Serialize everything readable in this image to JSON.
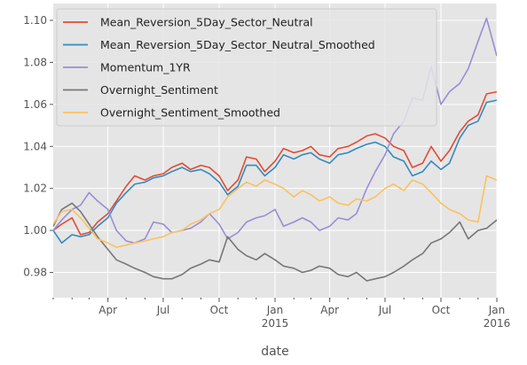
{
  "chart_data": {
    "type": "line",
    "xlabel": "date",
    "x_range": [
      "2014-01-01",
      "2016-01-01"
    ],
    "ylim": [
      0.968,
      1.108
    ],
    "y_ticks": [
      {
        "value": 0.98,
        "label": "0.98"
      },
      {
        "value": 1.0,
        "label": "1.00"
      },
      {
        "value": 1.02,
        "label": "1.02"
      },
      {
        "value": 1.04,
        "label": "1.04"
      },
      {
        "value": 1.06,
        "label": "1.06"
      },
      {
        "value": 1.08,
        "label": "1.08"
      },
      {
        "value": 1.1,
        "label": "1.10"
      }
    ],
    "x_ticks": [
      {
        "date": "2014-04-01",
        "label": "Apr",
        "sub": ""
      },
      {
        "date": "2014-07-01",
        "label": "Jul",
        "sub": ""
      },
      {
        "date": "2014-10-01",
        "label": "Oct",
        "sub": ""
      },
      {
        "date": "2015-01-01",
        "label": "Jan",
        "sub": "2015"
      },
      {
        "date": "2015-04-01",
        "label": "Apr",
        "sub": ""
      },
      {
        "date": "2015-07-01",
        "label": "Jul",
        "sub": ""
      },
      {
        "date": "2015-10-01",
        "label": "Oct",
        "sub": ""
      },
      {
        "date": "2016-01-01",
        "label": "Jan",
        "sub": "2016"
      }
    ],
    "grid": true,
    "legend": "top-left",
    "series": [
      {
        "name": "Mean_Reversion_5Day_Sector_Neutral",
        "color": "#e24a33",
        "points": [
          [
            "2014-01-01",
            1.0
          ],
          [
            "2014-01-15",
            1.003
          ],
          [
            "2014-02-01",
            1.006
          ],
          [
            "2014-02-15",
            0.998
          ],
          [
            "2014-03-01",
            0.999
          ],
          [
            "2014-03-15",
            1.004
          ],
          [
            "2014-04-01",
            1.008
          ],
          [
            "2014-04-15",
            1.014
          ],
          [
            "2014-05-01",
            1.021
          ],
          [
            "2014-05-15",
            1.026
          ],
          [
            "2014-06-01",
            1.024
          ],
          [
            "2014-06-15",
            1.026
          ],
          [
            "2014-07-01",
            1.027
          ],
          [
            "2014-07-15",
            1.03
          ],
          [
            "2014-08-01",
            1.032
          ],
          [
            "2014-08-15",
            1.029
          ],
          [
            "2014-09-01",
            1.031
          ],
          [
            "2014-09-15",
            1.03
          ],
          [
            "2014-10-01",
            1.026
          ],
          [
            "2014-10-15",
            1.019
          ],
          [
            "2014-11-01",
            1.024
          ],
          [
            "2014-11-15",
            1.035
          ],
          [
            "2014-12-01",
            1.034
          ],
          [
            "2014-12-15",
            1.028
          ],
          [
            "2015-01-01",
            1.033
          ],
          [
            "2015-01-15",
            1.039
          ],
          [
            "2015-02-01",
            1.037
          ],
          [
            "2015-02-15",
            1.038
          ],
          [
            "2015-03-01",
            1.04
          ],
          [
            "2015-03-15",
            1.036
          ],
          [
            "2015-04-01",
            1.035
          ],
          [
            "2015-04-15",
            1.039
          ],
          [
            "2015-05-01",
            1.04
          ],
          [
            "2015-05-15",
            1.042
          ],
          [
            "2015-06-01",
            1.045
          ],
          [
            "2015-06-15",
            1.046
          ],
          [
            "2015-07-01",
            1.044
          ],
          [
            "2015-07-15",
            1.04
          ],
          [
            "2015-08-01",
            1.038
          ],
          [
            "2015-08-15",
            1.03
          ],
          [
            "2015-09-01",
            1.032
          ],
          [
            "2015-09-15",
            1.04
          ],
          [
            "2015-10-01",
            1.033
          ],
          [
            "2015-10-15",
            1.038
          ],
          [
            "2015-11-01",
            1.047
          ],
          [
            "2015-11-15",
            1.052
          ],
          [
            "2015-12-01",
            1.055
          ],
          [
            "2015-12-15",
            1.065
          ],
          [
            "2016-01-01",
            1.066
          ]
        ]
      },
      {
        "name": "Mean_Reversion_5Day_Sector_Neutral_Smoothed",
        "color": "#348abd",
        "points": [
          [
            "2014-01-01",
            1.0
          ],
          [
            "2014-01-15",
            0.994
          ],
          [
            "2014-02-01",
            0.998
          ],
          [
            "2014-02-15",
            0.997
          ],
          [
            "2014-03-01",
            0.998
          ],
          [
            "2014-03-15",
            1.002
          ],
          [
            "2014-04-01",
            1.006
          ],
          [
            "2014-04-15",
            1.013
          ],
          [
            "2014-05-01",
            1.018
          ],
          [
            "2014-05-15",
            1.022
          ],
          [
            "2014-06-01",
            1.023
          ],
          [
            "2014-06-15",
            1.025
          ],
          [
            "2014-07-01",
            1.026
          ],
          [
            "2014-07-15",
            1.028
          ],
          [
            "2014-08-01",
            1.03
          ],
          [
            "2014-08-15",
            1.028
          ],
          [
            "2014-09-01",
            1.029
          ],
          [
            "2014-09-15",
            1.027
          ],
          [
            "2014-10-01",
            1.023
          ],
          [
            "2014-10-15",
            1.017
          ],
          [
            "2014-11-01",
            1.021
          ],
          [
            "2014-11-15",
            1.031
          ],
          [
            "2014-12-01",
            1.031
          ],
          [
            "2014-12-15",
            1.026
          ],
          [
            "2015-01-01",
            1.03
          ],
          [
            "2015-01-15",
            1.036
          ],
          [
            "2015-02-01",
            1.034
          ],
          [
            "2015-02-15",
            1.036
          ],
          [
            "2015-03-01",
            1.037
          ],
          [
            "2015-03-15",
            1.034
          ],
          [
            "2015-04-01",
            1.032
          ],
          [
            "2015-04-15",
            1.036
          ],
          [
            "2015-05-01",
            1.037
          ],
          [
            "2015-05-15",
            1.039
          ],
          [
            "2015-06-01",
            1.041
          ],
          [
            "2015-06-15",
            1.042
          ],
          [
            "2015-07-01",
            1.04
          ],
          [
            "2015-07-15",
            1.035
          ],
          [
            "2015-08-01",
            1.033
          ],
          [
            "2015-08-15",
            1.026
          ],
          [
            "2015-09-01",
            1.028
          ],
          [
            "2015-09-15",
            1.033
          ],
          [
            "2015-10-01",
            1.029
          ],
          [
            "2015-10-15",
            1.032
          ],
          [
            "2015-11-01",
            1.044
          ],
          [
            "2015-11-15",
            1.05
          ],
          [
            "2015-12-01",
            1.052
          ],
          [
            "2015-12-15",
            1.061
          ],
          [
            "2016-01-01",
            1.062
          ]
        ]
      },
      {
        "name": "Momentum_1YR",
        "color": "#988ed5",
        "points": [
          [
            "2014-01-01",
            1.0
          ],
          [
            "2014-01-15",
            1.005
          ],
          [
            "2014-02-01",
            1.01
          ],
          [
            "2014-02-15",
            1.012
          ],
          [
            "2014-03-01",
            1.018
          ],
          [
            "2014-03-15",
            1.014
          ],
          [
            "2014-04-01",
            1.01
          ],
          [
            "2014-04-15",
            1.0
          ],
          [
            "2014-05-01",
            0.995
          ],
          [
            "2014-05-15",
            0.994
          ],
          [
            "2014-06-01",
            0.996
          ],
          [
            "2014-06-15",
            1.004
          ],
          [
            "2014-07-01",
            1.003
          ],
          [
            "2014-07-15",
            0.999
          ],
          [
            "2014-08-01",
            1.0
          ],
          [
            "2014-08-15",
            1.001
          ],
          [
            "2014-09-01",
            1.004
          ],
          [
            "2014-09-15",
            1.008
          ],
          [
            "2014-10-01",
            1.003
          ],
          [
            "2014-10-15",
            0.996
          ],
          [
            "2014-11-01",
            0.999
          ],
          [
            "2014-11-15",
            1.004
          ],
          [
            "2014-12-01",
            1.006
          ],
          [
            "2014-12-15",
            1.007
          ],
          [
            "2015-01-01",
            1.01
          ],
          [
            "2015-01-15",
            1.002
          ],
          [
            "2015-02-01",
            1.004
          ],
          [
            "2015-02-15",
            1.006
          ],
          [
            "2015-03-01",
            1.004
          ],
          [
            "2015-03-15",
            1.0
          ],
          [
            "2015-04-01",
            1.002
          ],
          [
            "2015-04-15",
            1.006
          ],
          [
            "2015-05-01",
            1.005
          ],
          [
            "2015-05-15",
            1.008
          ],
          [
            "2015-06-01",
            1.02
          ],
          [
            "2015-06-15",
            1.028
          ],
          [
            "2015-07-01",
            1.036
          ],
          [
            "2015-07-15",
            1.046
          ],
          [
            "2015-08-01",
            1.052
          ],
          [
            "2015-08-15",
            1.063
          ],
          [
            "2015-09-01",
            1.062
          ],
          [
            "2015-09-15",
            1.078
          ],
          [
            "2015-10-01",
            1.06
          ],
          [
            "2015-10-15",
            1.066
          ],
          [
            "2015-11-01",
            1.07
          ],
          [
            "2015-11-15",
            1.077
          ],
          [
            "2015-12-01",
            1.09
          ],
          [
            "2015-12-15",
            1.101
          ],
          [
            "2016-01-01",
            1.083
          ]
        ]
      },
      {
        "name": "Overnight_Sentiment",
        "color": "#777777",
        "points": [
          [
            "2014-01-01",
            1.002
          ],
          [
            "2014-01-15",
            1.01
          ],
          [
            "2014-02-01",
            1.013
          ],
          [
            "2014-02-15",
            1.009
          ],
          [
            "2014-03-01",
            1.003
          ],
          [
            "2014-03-15",
            0.997
          ],
          [
            "2014-04-01",
            0.991
          ],
          [
            "2014-04-15",
            0.986
          ],
          [
            "2014-05-01",
            0.984
          ],
          [
            "2014-05-15",
            0.982
          ],
          [
            "2014-06-01",
            0.98
          ],
          [
            "2014-06-15",
            0.978
          ],
          [
            "2014-07-01",
            0.977
          ],
          [
            "2014-07-15",
            0.977
          ],
          [
            "2014-08-01",
            0.979
          ],
          [
            "2014-08-15",
            0.982
          ],
          [
            "2014-09-01",
            0.984
          ],
          [
            "2014-09-15",
            0.986
          ],
          [
            "2014-10-01",
            0.985
          ],
          [
            "2014-10-15",
            0.997
          ],
          [
            "2014-11-01",
            0.991
          ],
          [
            "2014-11-15",
            0.988
          ],
          [
            "2014-12-01",
            0.986
          ],
          [
            "2014-12-15",
            0.989
          ],
          [
            "2015-01-01",
            0.986
          ],
          [
            "2015-01-15",
            0.983
          ],
          [
            "2015-02-01",
            0.982
          ],
          [
            "2015-02-15",
            0.98
          ],
          [
            "2015-03-01",
            0.981
          ],
          [
            "2015-03-15",
            0.983
          ],
          [
            "2015-04-01",
            0.982
          ],
          [
            "2015-04-15",
            0.979
          ],
          [
            "2015-05-01",
            0.978
          ],
          [
            "2015-05-15",
            0.98
          ],
          [
            "2015-06-01",
            0.976
          ],
          [
            "2015-06-15",
            0.977
          ],
          [
            "2015-07-01",
            0.978
          ],
          [
            "2015-07-15",
            0.98
          ],
          [
            "2015-08-01",
            0.983
          ],
          [
            "2015-08-15",
            0.986
          ],
          [
            "2015-09-01",
            0.989
          ],
          [
            "2015-09-15",
            0.994
          ],
          [
            "2015-10-01",
            0.996
          ],
          [
            "2015-10-15",
            0.999
          ],
          [
            "2015-11-01",
            1.004
          ],
          [
            "2015-11-15",
            0.996
          ],
          [
            "2015-12-01",
            1.0
          ],
          [
            "2015-12-15",
            1.001
          ],
          [
            "2016-01-01",
            1.005
          ]
        ]
      },
      {
        "name": "Overnight_Sentiment_Smoothed",
        "color": "#fbc15e",
        "points": [
          [
            "2014-01-01",
            1.003
          ],
          [
            "2014-01-15",
            1.009
          ],
          [
            "2014-02-01",
            1.01
          ],
          [
            "2014-02-15",
            1.006
          ],
          [
            "2014-03-01",
            1.001
          ],
          [
            "2014-03-15",
            0.996
          ],
          [
            "2014-04-01",
            0.994
          ],
          [
            "2014-04-15",
            0.992
          ],
          [
            "2014-05-01",
            0.993
          ],
          [
            "2014-05-15",
            0.994
          ],
          [
            "2014-06-01",
            0.995
          ],
          [
            "2014-06-15",
            0.996
          ],
          [
            "2014-07-01",
            0.997
          ],
          [
            "2014-07-15",
            0.999
          ],
          [
            "2014-08-01",
            1.0
          ],
          [
            "2014-08-15",
            1.003
          ],
          [
            "2014-09-01",
            1.005
          ],
          [
            "2014-09-15",
            1.008
          ],
          [
            "2014-10-01",
            1.01
          ],
          [
            "2014-10-15",
            1.016
          ],
          [
            "2014-11-01",
            1.02
          ],
          [
            "2014-11-15",
            1.023
          ],
          [
            "2014-12-01",
            1.021
          ],
          [
            "2014-12-15",
            1.024
          ],
          [
            "2015-01-01",
            1.022
          ],
          [
            "2015-01-15",
            1.02
          ],
          [
            "2015-02-01",
            1.016
          ],
          [
            "2015-02-15",
            1.019
          ],
          [
            "2015-03-01",
            1.017
          ],
          [
            "2015-03-15",
            1.014
          ],
          [
            "2015-04-01",
            1.016
          ],
          [
            "2015-04-15",
            1.013
          ],
          [
            "2015-05-01",
            1.012
          ],
          [
            "2015-05-15",
            1.015
          ],
          [
            "2015-06-01",
            1.014
          ],
          [
            "2015-06-15",
            1.016
          ],
          [
            "2015-07-01",
            1.02
          ],
          [
            "2015-07-15",
            1.022
          ],
          [
            "2015-08-01",
            1.019
          ],
          [
            "2015-08-15",
            1.024
          ],
          [
            "2015-09-01",
            1.022
          ],
          [
            "2015-09-15",
            1.018
          ],
          [
            "2015-10-01",
            1.013
          ],
          [
            "2015-10-15",
            1.01
          ],
          [
            "2015-11-01",
            1.008
          ],
          [
            "2015-11-15",
            1.005
          ],
          [
            "2015-12-01",
            1.004
          ],
          [
            "2015-12-15",
            1.026
          ],
          [
            "2016-01-01",
            1.024
          ]
        ]
      }
    ]
  }
}
